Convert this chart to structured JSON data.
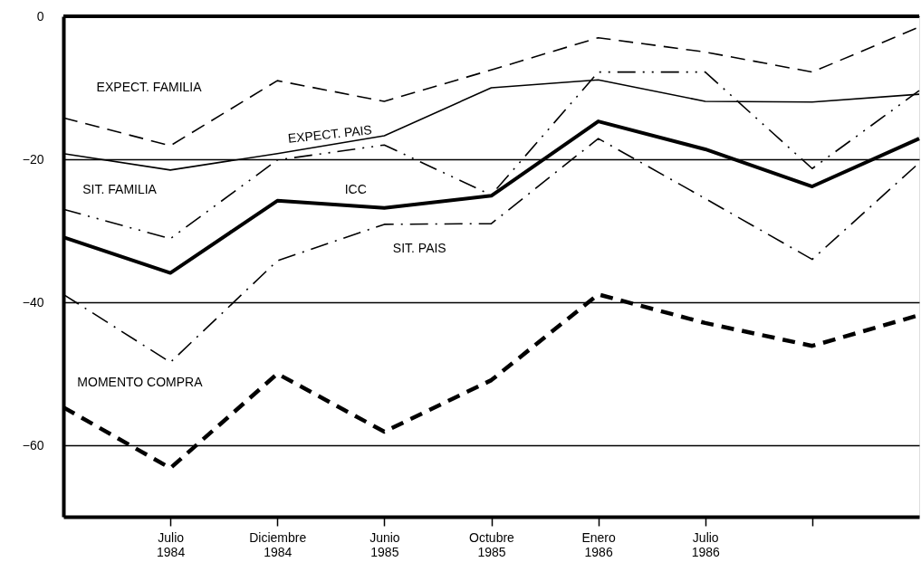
{
  "chart_data": {
    "type": "line",
    "categories": [
      null,
      "Julio 1984",
      "Diciembre 1984",
      "Junio 1985",
      "Octubre 1985",
      "Enero 1986",
      "Julio 1986",
      null,
      null
    ],
    "series": [
      {
        "name": "EXPECT. FAMILIA",
        "color": "#000000",
        "line_style": "dashed",
        "values": [
          -14.2,
          -18.1,
          -9,
          -11.9,
          -7.5,
          -3,
          -5,
          -7.8,
          -1.5
        ]
      },
      {
        "name": "EXPECT. PAIS",
        "color": "#000000",
        "line_style": "solid",
        "values": [
          -19.2,
          -21.5,
          -19.2,
          -16.7,
          -10,
          -8.9,
          -11.9,
          -12,
          -10.9
        ]
      },
      {
        "name": "SIT. FAMILIA",
        "color": "#000000",
        "line_style": "dashdotdot",
        "values": [
          -27,
          -31.1,
          -20.1,
          -18,
          -25,
          -7.8,
          -7.8,
          -21.3,
          -10.4
        ]
      },
      {
        "name": "ICC",
        "color": "#000000",
        "line_style": "solid",
        "values": [
          -30.9,
          -35.9,
          -25.8,
          -26.8,
          -25.1,
          -14.7,
          -18.6,
          -23.8,
          -17.1
        ]
      },
      {
        "name": "SIT. PAIS",
        "color": "#000000",
        "line_style": "dashdot",
        "values": [
          -38.9,
          -48.4,
          -34.2,
          -29.1,
          -29,
          -17.1,
          -25.5,
          -34,
          -20.5
        ]
      },
      {
        "name": "MOMENTO COMPRA",
        "color": "#000000",
        "line_style": "dashed",
        "values": [
          -54.7,
          -63.2,
          -50,
          -58.1,
          -50.9,
          -38.9,
          -42.9,
          -46.1,
          -41.8
        ]
      }
    ],
    "ylim": [
      -70,
      0
    ],
    "yticks": [
      0,
      -20,
      -40,
      -60
    ],
    "grid": "y",
    "legend": false,
    "marker": "none"
  }
}
